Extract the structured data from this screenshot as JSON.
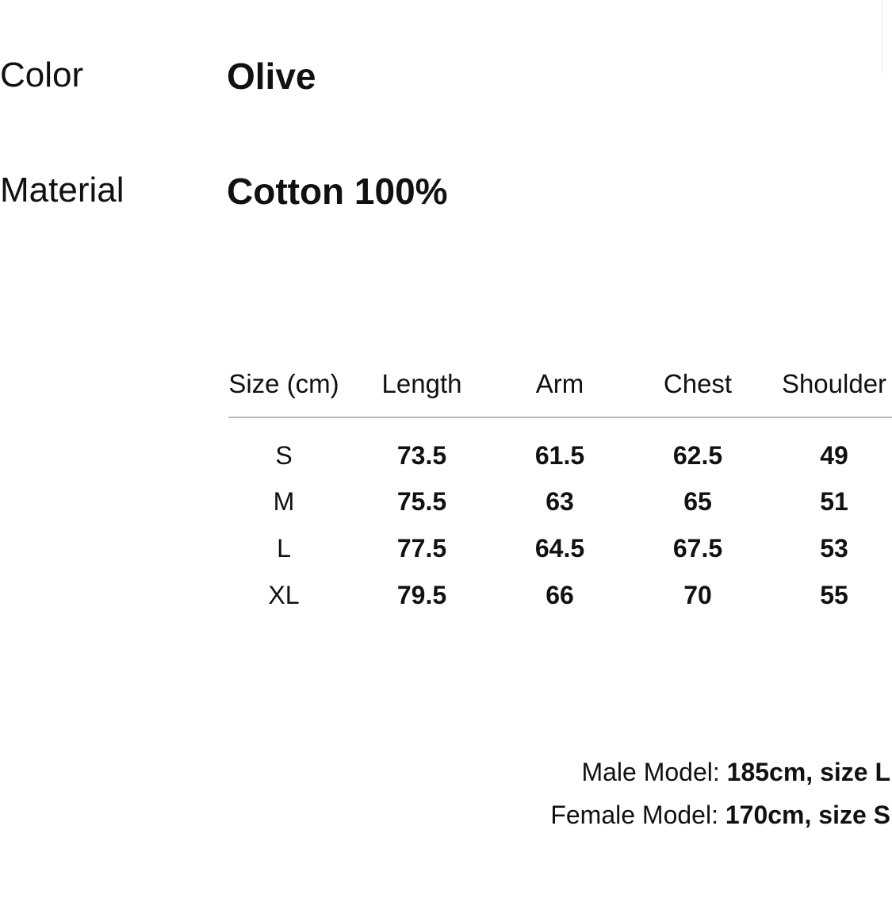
{
  "attributes": [
    {
      "label": "Color",
      "value": "Olive"
    },
    {
      "label": "Material",
      "value": "Cotton 100%"
    }
  ],
  "size_table": {
    "headers": [
      "Size (cm)",
      "Length",
      "Arm",
      "Chest",
      "Shoulder"
    ],
    "rows": [
      [
        "S",
        "73.5",
        "61.5",
        "62.5",
        "49"
      ],
      [
        "M",
        "75.5",
        "63",
        "65",
        "51"
      ],
      [
        "L",
        "77.5",
        "64.5",
        "67.5",
        "53"
      ],
      [
        "XL",
        "79.5",
        "66",
        "70",
        "55"
      ]
    ]
  },
  "models": [
    {
      "label": "Male Model:",
      "value": "185cm, size L"
    },
    {
      "label": "Female Model:",
      "value": "170cm, size S"
    }
  ]
}
